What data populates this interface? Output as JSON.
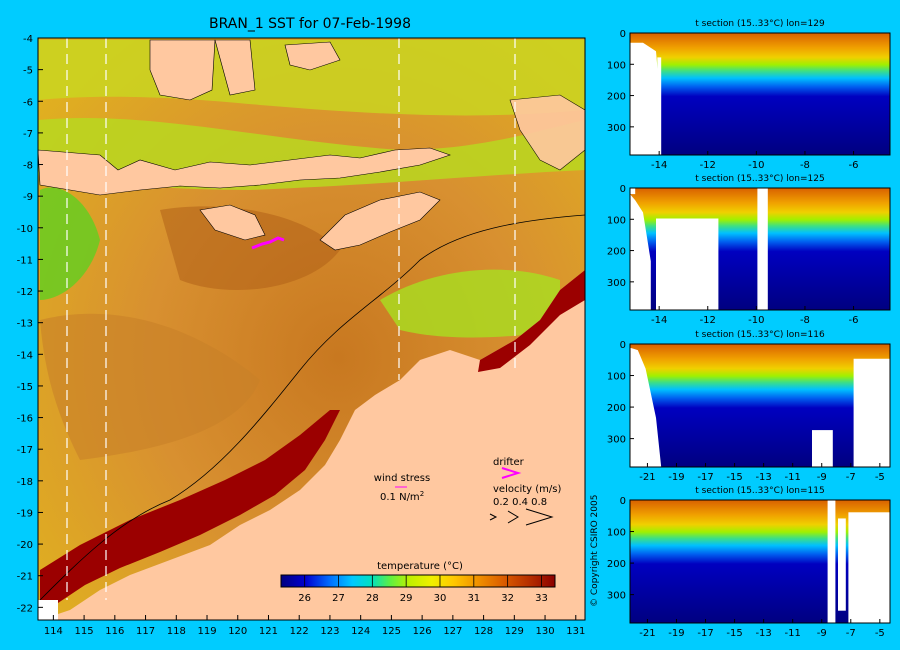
{
  "chart_data": [
    {
      "type": "heatmap",
      "title": "BRAN_1 SST for 07-Feb-1998",
      "x_ticks": [
        "114",
        "115",
        "116",
        "117",
        "118",
        "119",
        "120",
        "121",
        "122",
        "123",
        "124",
        "125",
        "126",
        "127",
        "128",
        "129",
        "130",
        "131"
      ],
      "y_ticks": [
        "-4",
        "-5",
        "-6",
        "-7",
        "-8",
        "-9",
        "-10",
        "-11",
        "-12",
        "-13",
        "-14",
        "-15",
        "-16",
        "-17",
        "-18",
        "-19",
        "-20",
        "-21",
        "-22"
      ],
      "xlim": [
        113.5,
        131.3
      ],
      "ylim": [
        -22.4,
        -4
      ],
      "colorbar": {
        "label": "temperature (°C)",
        "ticks": [
          "26",
          "27",
          "28",
          "29",
          "30",
          "31",
          "32",
          "33"
        ],
        "range": [
          25.3,
          33.4
        ],
        "colors": [
          "#000080",
          "#0000c8",
          "#0050f0",
          "#00a0ff",
          "#00e0e0",
          "#40e080",
          "#80f000",
          "#e0f000",
          "#ffd000",
          "#f0a000",
          "#d86000",
          "#b03000",
          "#8b0000"
        ]
      },
      "land_color": "#ffc8a0",
      "annotations": {
        "wind_stress_label": "wind stress",
        "wind_stress_value": "0.1 N/m",
        "wind_stress_exp": "2",
        "drifter_label": "drifter",
        "velocity_label": "velocity (m/s)",
        "velocity_values": "0.2 0.4 0.8",
        "copyright": "© Copyright CSIRO 2005"
      }
    },
    {
      "type": "heatmap",
      "title": "t section (15..33°C) lon=129",
      "x_ticks": [
        "-14",
        "-12",
        "-10",
        "-8",
        "-6"
      ],
      "xlim": [
        -15.2,
        -4.5
      ],
      "y_ticks": [
        "0",
        "100",
        "200",
        "300"
      ],
      "ylim": [
        0,
        390
      ]
    },
    {
      "type": "heatmap",
      "title": "t section (15..33°C) lon=125",
      "x_ticks": [
        "-14",
        "-12",
        "-10",
        "-8",
        "-6"
      ],
      "xlim": [
        -15.2,
        -4.5
      ],
      "y_ticks": [
        "0",
        "100",
        "200",
        "300"
      ],
      "ylim": [
        0,
        390
      ]
    },
    {
      "type": "heatmap",
      "title": "t section (15..33°C) lon=116",
      "x_ticks": [
        "-21",
        "-19",
        "-17",
        "-15",
        "-13",
        "-11",
        "-9",
        "-7",
        "-5"
      ],
      "xlim": [
        -22.2,
        -4.3
      ],
      "y_ticks": [
        "0",
        "100",
        "200",
        "300"
      ],
      "ylim": [
        0,
        390
      ]
    },
    {
      "type": "heatmap",
      "title": "t section (15..33°C) lon=115",
      "x_ticks": [
        "-21",
        "-19",
        "-17",
        "-15",
        "-13",
        "-11",
        "-9",
        "-7",
        "-5"
      ],
      "xlim": [
        -22.2,
        -4.3
      ],
      "y_ticks": [
        "0",
        "100",
        "200",
        "300"
      ],
      "ylim": [
        0,
        390
      ]
    }
  ]
}
